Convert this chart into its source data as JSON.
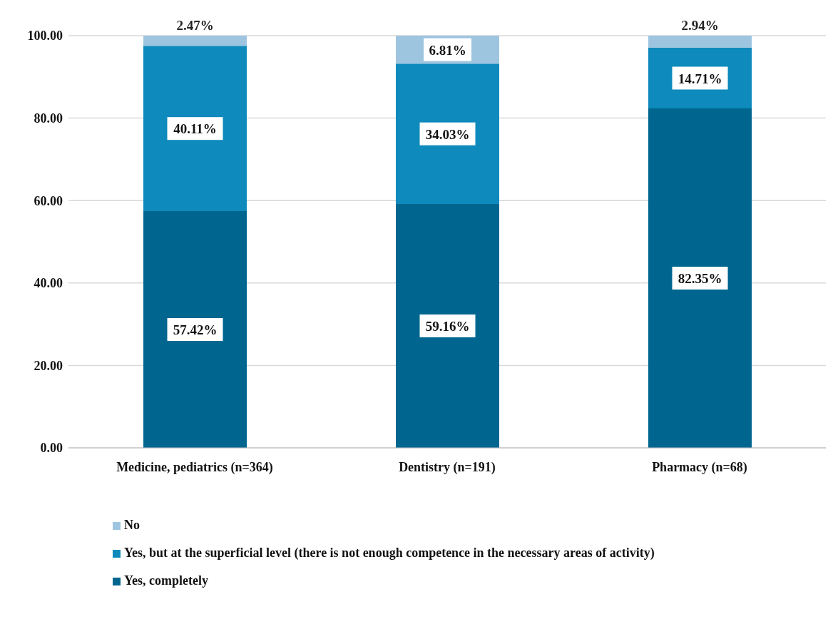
{
  "chart_data": {
    "type": "bar",
    "stacked": true,
    "categories": [
      "Medicine, pediatrics (n=364)",
      "Dentistry (n=191)",
      "Pharmacy (n=68)"
    ],
    "series": [
      {
        "name": "Yes, completely",
        "color": "#00668f",
        "values": [
          57.42,
          59.16,
          82.35
        ],
        "value_labels": [
          "57.42%",
          "59.16%",
          "82.35%"
        ]
      },
      {
        "name": "Yes, but at the superficial level (there is not enough competence in the necessary areas of activity)",
        "color": "#0e8abc",
        "values": [
          40.11,
          34.03,
          14.71
        ],
        "value_labels": [
          "40.11%",
          "34.03%",
          "14.71%"
        ]
      },
      {
        "name": "No",
        "color": "#9ec5e0",
        "values": [
          2.47,
          6.81,
          2.94
        ],
        "value_labels": [
          "2.47%",
          "6.81%",
          "2.94%"
        ]
      }
    ],
    "ylim": [
      0,
      100
    ],
    "yticks": [
      {
        "value": 0,
        "label": "0.00"
      },
      {
        "value": 20,
        "label": "20.00"
      },
      {
        "value": 40,
        "label": "40.00"
      },
      {
        "value": 60,
        "label": "60.00"
      },
      {
        "value": 80,
        "label": "80.00"
      },
      {
        "value": 100,
        "label": "100.00"
      }
    ],
    "grid": "y",
    "legend": "bottom"
  }
}
